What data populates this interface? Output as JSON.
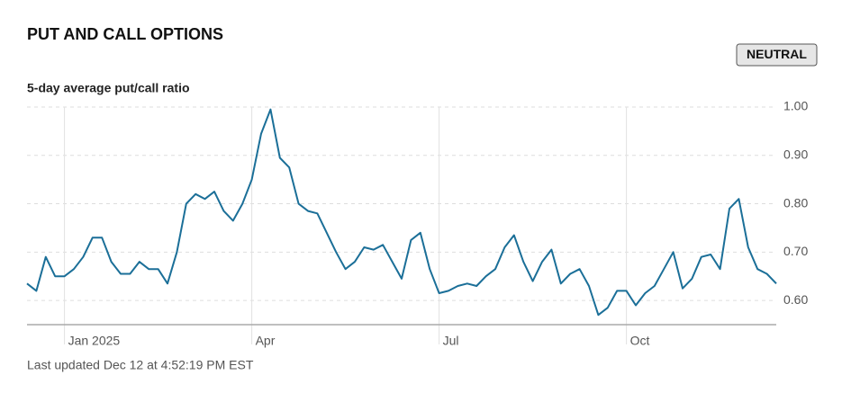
{
  "chart_data": {
    "type": "line",
    "title": "PUT AND CALL OPTIONS",
    "status": "NEUTRAL",
    "subtitle": "5-day average put/call ratio",
    "footer": "Last updated Dec 12 at 4:52:19 PM EST",
    "categories": [
      null,
      null,
      null,
      null,
      "Jan 2025",
      null,
      null,
      null,
      null,
      null,
      null,
      null,
      null,
      null,
      null,
      null,
      null,
      null,
      null,
      null,
      null,
      null,
      null,
      null,
      "Apr",
      null,
      null,
      null,
      null,
      null,
      null,
      null,
      null,
      null,
      null,
      null,
      null,
      null,
      null,
      null,
      null,
      null,
      null,
      null,
      "Jul",
      null,
      null,
      null,
      null,
      null,
      null,
      null,
      null,
      null,
      null,
      null,
      null,
      null,
      null,
      null,
      null,
      null,
      null,
      null,
      "Oct",
      null,
      null,
      null,
      null,
      null,
      null,
      null,
      null,
      null,
      null,
      null,
      null,
      null,
      null,
      null,
      null
    ],
    "series": [
      {
        "name": "5-day average put/call ratio",
        "color": "#1b6f98",
        "values": [
          0.635,
          0.62,
          0.69,
          0.65,
          0.65,
          0.665,
          0.69,
          0.73,
          0.73,
          0.68,
          0.655,
          0.655,
          0.68,
          0.665,
          0.665,
          0.635,
          0.7,
          0.8,
          0.82,
          0.81,
          0.825,
          0.785,
          0.765,
          0.8,
          0.85,
          0.945,
          0.995,
          0.895,
          0.875,
          0.8,
          0.785,
          0.78,
          0.74,
          0.7,
          0.665,
          0.68,
          0.71,
          0.705,
          0.715,
          0.68,
          0.645,
          0.725,
          0.74,
          0.665,
          0.615,
          0.62,
          0.63,
          0.635,
          0.63,
          0.65,
          0.665,
          0.71,
          0.735,
          0.68,
          0.64,
          0.68,
          0.705,
          0.635,
          0.655,
          0.665,
          0.63,
          0.57,
          0.585,
          0.62,
          0.62,
          0.59,
          0.615,
          0.63,
          0.665,
          0.7,
          0.625,
          0.645,
          0.69,
          0.695,
          0.665,
          0.79,
          0.81,
          0.71,
          0.665,
          0.655,
          0.635
        ]
      }
    ],
    "ylim": [
      0.55,
      1.0
    ],
    "yticks": [
      {
        "value": 0.6,
        "label": "0.60"
      },
      {
        "value": 0.7,
        "label": "0.70"
      },
      {
        "value": 0.8,
        "label": "0.80"
      },
      {
        "value": 0.9,
        "label": "0.90"
      },
      {
        "value": 1.0,
        "label": "1.00"
      }
    ],
    "grid": true
  }
}
